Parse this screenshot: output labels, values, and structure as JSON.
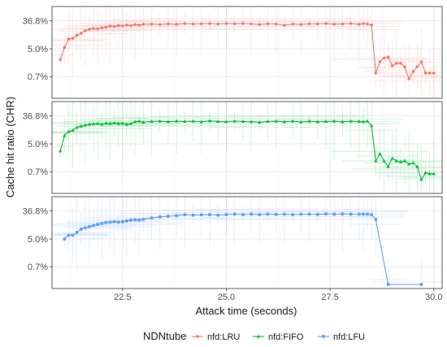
{
  "chart_data": {
    "type": "line",
    "xlabel": "Attack time (seconds)",
    "ylabel": "Cache hit ratio (CHR)",
    "x_range": [
      20.8,
      30.2
    ],
    "x_ticks": [
      22.5,
      25.0,
      27.5,
      30.0
    ],
    "x_tick_labels": [
      "22.5",
      "25.0",
      "27.5",
      "30.0"
    ],
    "y_scale": "log",
    "y_range": [
      0.15,
      100
    ],
    "y_ticks": [
      0.7,
      5.0,
      36.8
    ],
    "y_tick_labels": [
      "0.7%",
      "5.0%",
      "36.8%"
    ],
    "grid": true,
    "legend": {
      "title": "NDNtube",
      "placement": "bottom"
    },
    "panels": [
      {
        "series": {
          "name": "nfd:LRU",
          "color": "#F8766D",
          "marker": "circle",
          "x": [
            21.0,
            21.1,
            21.2,
            21.3,
            21.4,
            21.5,
            21.6,
            21.7,
            21.8,
            21.9,
            22.0,
            22.1,
            22.2,
            22.3,
            22.4,
            22.5,
            22.6,
            22.7,
            22.8,
            22.9,
            23.0,
            23.2,
            23.4,
            23.6,
            23.8,
            24.0,
            24.2,
            24.4,
            24.6,
            24.8,
            25.0,
            25.2,
            25.4,
            25.6,
            25.8,
            26.0,
            26.2,
            26.4,
            26.6,
            26.8,
            27.0,
            27.2,
            27.4,
            27.6,
            27.8,
            28.0,
            28.2,
            28.3,
            28.4,
            28.5,
            28.6,
            28.7,
            28.8,
            28.9,
            29.0,
            29.1,
            29.2,
            29.3,
            29.4,
            29.5,
            29.6,
            29.7,
            29.8,
            29.9,
            30.0
          ],
          "y": [
            2.3,
            5.5,
            10,
            10.5,
            13,
            15,
            18,
            20,
            21,
            20.5,
            22,
            23,
            25,
            24,
            26,
            25.5,
            27,
            26,
            28,
            27,
            28.5,
            29,
            28,
            29.5,
            28.5,
            30,
            29,
            29.5,
            30,
            29,
            30,
            29.5,
            30,
            29,
            28,
            29.5,
            29,
            26.5,
            29,
            28,
            29.5,
            29,
            30,
            28.5,
            29,
            30,
            28.5,
            30,
            29,
            27,
            0.9,
            2.0,
            2.6,
            2.8,
            1.5,
            1.8,
            1.8,
            1.4,
            0.6,
            1.0,
            1.4,
            2.0,
            0.9,
            0.9,
            0.9
          ]
        }
      },
      {
        "series": {
          "name": "nfd:FIFO",
          "color": "#00BA38",
          "marker": "triangle",
          "x": [
            21.0,
            21.1,
            21.2,
            21.3,
            21.4,
            21.5,
            21.6,
            21.7,
            21.8,
            21.9,
            22.0,
            22.1,
            22.2,
            22.3,
            22.4,
            22.5,
            22.6,
            22.7,
            22.8,
            22.9,
            23.0,
            23.2,
            23.4,
            23.6,
            23.8,
            24.0,
            24.2,
            24.4,
            24.6,
            24.8,
            25.0,
            25.2,
            25.4,
            25.6,
            25.8,
            26.0,
            26.2,
            26.4,
            26.6,
            26.8,
            27.0,
            27.2,
            27.4,
            27.6,
            27.8,
            28.0,
            28.2,
            28.3,
            28.4,
            28.5,
            28.6,
            28.7,
            28.8,
            28.9,
            29.0,
            29.1,
            29.2,
            29.3,
            29.4,
            29.5,
            29.6,
            29.7,
            29.8,
            29.9,
            30.0
          ],
          "y": [
            3.0,
            9.0,
            12,
            13,
            16,
            17.5,
            19,
            20,
            20.5,
            21,
            20,
            21.5,
            21,
            22,
            21,
            21.5,
            20,
            21,
            24,
            25,
            23,
            24.5,
            25,
            24,
            25,
            24.5,
            25,
            24,
            25.5,
            24.5,
            24,
            25,
            24.5,
            24,
            23,
            24.5,
            25,
            24,
            25,
            23.5,
            25,
            24,
            24.5,
            25,
            24,
            25,
            24.5,
            24,
            25,
            18,
            1.5,
            2.5,
            1.5,
            1.0,
            1.8,
            1.5,
            1.4,
            1.5,
            1.2,
            1.3,
            1.0,
            0.4,
            0.65,
            0.6,
            0.6
          ]
        }
      },
      {
        "series": {
          "name": "nfd:LFU",
          "color": "#619CFF",
          "marker": "square",
          "x": [
            21.1,
            21.2,
            21.3,
            21.4,
            21.5,
            21.6,
            21.7,
            21.8,
            21.9,
            22.0,
            22.1,
            22.2,
            22.3,
            22.4,
            22.5,
            22.6,
            22.7,
            22.8,
            22.9,
            23.0,
            23.2,
            23.4,
            23.6,
            23.8,
            24.0,
            24.2,
            24.4,
            24.6,
            24.8,
            25.0,
            25.2,
            25.4,
            25.6,
            25.8,
            26.0,
            26.2,
            26.4,
            26.6,
            26.8,
            27.0,
            27.2,
            27.4,
            27.6,
            27.8,
            28.0,
            28.2,
            28.3,
            28.4,
            28.5,
            28.6,
            28.9,
            29.7
          ],
          "y": [
            5.0,
            6.5,
            6.5,
            8.0,
            10,
            11,
            12,
            13,
            14,
            15,
            16,
            16.5,
            17,
            16.5,
            17,
            18,
            19,
            19.5,
            19,
            20,
            22,
            24,
            25,
            26,
            28,
            27,
            27.5,
            28,
            27,
            28,
            29,
            28,
            29,
            28,
            29,
            28.5,
            29,
            28,
            29,
            29,
            28.5,
            29.5,
            29,
            29.5,
            29,
            29,
            29,
            29,
            28,
            20,
            0.2,
            0.2
          ]
        }
      }
    ]
  }
}
